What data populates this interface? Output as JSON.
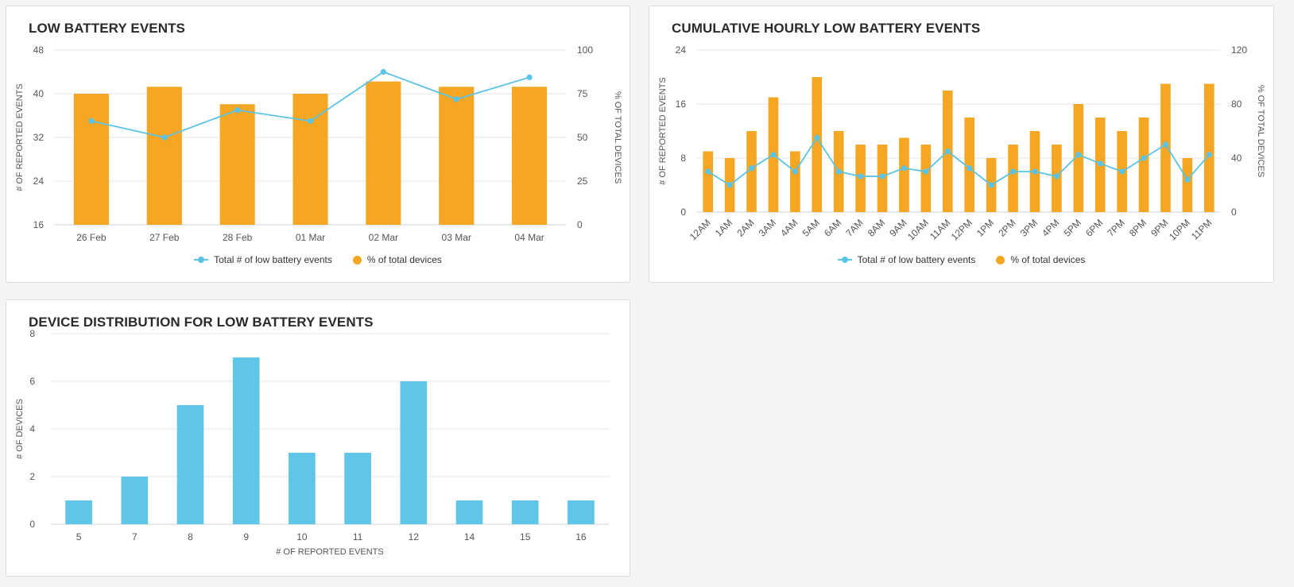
{
  "colors": {
    "bar_orange": "#f5a623",
    "line_blue": "#5bc3e6",
    "bar_blue": "#5fc6e8",
    "grid": "#e6e6e6"
  },
  "panels": {
    "low_battery": {
      "title": "LOW BATTERY EVENTS"
    },
    "hourly": {
      "title": "CUMULATIVE HOURLY LOW BATTERY EVENTS"
    },
    "distribution": {
      "title": "DEVICE DISTRIBUTION FOR LOW BATTERY EVENTS"
    }
  },
  "chart_data": [
    {
      "type": "bar",
      "title": "LOW BATTERY EVENTS",
      "categories": [
        "26 Feb",
        "27 Feb",
        "28 Feb",
        "01 Mar",
        "02 Mar",
        "03 Mar",
        "04 Mar"
      ],
      "ylabel": "# OF REPORTED EVENTS",
      "ylabel_right": "% OF TOTAL DEVICES",
      "ylim": [
        16,
        48
      ],
      "yticks": [
        16,
        24,
        32,
        40,
        48
      ],
      "ylim_right": [
        0,
        100
      ],
      "yticks_right": [
        0,
        25,
        50,
        75,
        100
      ],
      "grid": true,
      "series": [
        {
          "name": "Total # of low battery events",
          "type": "line",
          "axis": "left",
          "values": [
            35,
            32,
            37,
            35,
            44,
            39,
            43
          ]
        },
        {
          "name": "% of total devices",
          "type": "bar",
          "axis": "right",
          "values": [
            75,
            79,
            69,
            75,
            82,
            79,
            79
          ]
        }
      ],
      "legend": [
        "Total # of low battery events",
        "% of total devices"
      ],
      "legend_position": "bottom"
    },
    {
      "type": "bar",
      "title": "CUMULATIVE HOURLY LOW BATTERY EVENTS",
      "categories": [
        "12AM",
        "1AM",
        "2AM",
        "3AM",
        "4AM",
        "5AM",
        "6AM",
        "7AM",
        "8AM",
        "9AM",
        "10AM",
        "11AM",
        "12PM",
        "1PM",
        "2PM",
        "3PM",
        "4PM",
        "5PM",
        "6PM",
        "7PM",
        "8PM",
        "9PM",
        "10PM",
        "11PM"
      ],
      "ylabel": "# OF REPORTED EVENTS",
      "ylabel_right": "% OF TOTAL DEVICES",
      "ylim": [
        0,
        24
      ],
      "yticks": [
        0,
        8,
        16,
        24
      ],
      "ylim_right": [
        0,
        120
      ],
      "yticks_right": [
        0,
        40,
        80,
        120
      ],
      "grid": true,
      "series": [
        {
          "name": "Total # of low battery events",
          "type": "line",
          "axis": "left",
          "values": [
            6,
            4,
            6.5,
            8.5,
            6,
            11,
            6,
            5.3,
            5.3,
            6.5,
            6,
            9,
            6.5,
            4,
            6,
            6,
            5.3,
            8.5,
            7.2,
            6,
            8,
            10,
            4.8,
            8.5
          ]
        },
        {
          "name": "% of total devices",
          "type": "bar",
          "axis": "right",
          "values": [
            45,
            40,
            60,
            85,
            45,
            100,
            60,
            50,
            50,
            55,
            50,
            90,
            70,
            40,
            50,
            60,
            50,
            80,
            70,
            60,
            70,
            95,
            40,
            95
          ]
        }
      ],
      "legend": [
        "Total # of low battery events",
        "% of total devices"
      ],
      "legend_position": "bottom"
    },
    {
      "type": "bar",
      "title": "DEVICE DISTRIBUTION FOR LOW BATTERY EVENTS",
      "categories": [
        "5",
        "7",
        "8",
        "9",
        "10",
        "11",
        "12",
        "14",
        "15",
        "16"
      ],
      "values": [
        1,
        2,
        5,
        7,
        3,
        3,
        6,
        1,
        1,
        1
      ],
      "xlabel": "# OF REPORTED EVENTS",
      "ylabel": "# OF DEVICES",
      "ylim": [
        0,
        8
      ],
      "yticks": [
        0,
        2,
        4,
        6,
        8
      ],
      "grid": true
    }
  ]
}
